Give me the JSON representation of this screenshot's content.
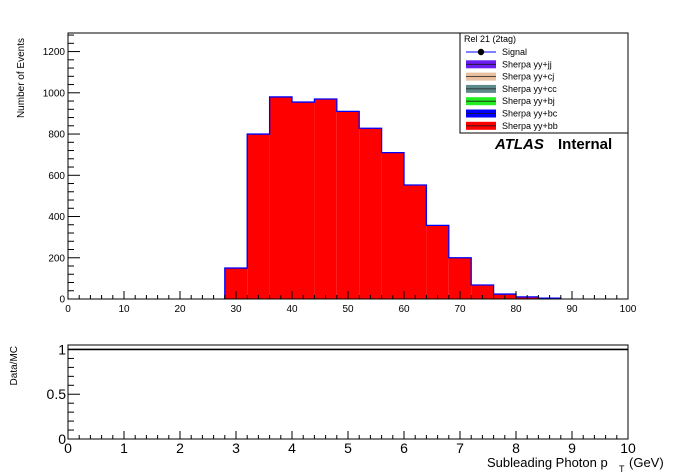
{
  "chart_data": [
    {
      "type": "bar",
      "histogram": true,
      "ylabel": "Number of Events",
      "xlim": [
        0,
        100
      ],
      "ylim": [
        0,
        1290
      ],
      "x_ticks": [
        0,
        10,
        20,
        30,
        40,
        50,
        60,
        70,
        80,
        90,
        100
      ],
      "y_ticks": [
        0,
        200,
        400,
        600,
        800,
        1000,
        1200
      ],
      "bin_edges": [
        28,
        32,
        36,
        40,
        44,
        48,
        52,
        56,
        60,
        64,
        68,
        72,
        76,
        80,
        84,
        88
      ],
      "series": [
        {
          "name": "Sherpa yy+bb",
          "color": "#ff0000",
          "values": [
            150,
            800,
            980,
            955,
            970,
            910,
            828,
            710,
            553,
            357,
            200,
            68,
            24,
            10,
            4
          ]
        }
      ],
      "outline_color": "#0000ff",
      "legend": {
        "title": "Rel 21 (2tag)",
        "position": "top-right",
        "entries": [
          {
            "label": "Signal",
            "style": "marker",
            "color": "#000000",
            "line": "#0000ff"
          },
          {
            "label": "Sherpa yy+jj",
            "style": "fill",
            "color": "#6a1ef0"
          },
          {
            "label": "Sherpa yy+cj",
            "style": "fill",
            "color": "#e8c0a0"
          },
          {
            "label": "Sherpa yy+cc",
            "style": "fill",
            "color": "#5f8a8c"
          },
          {
            "label": "Sherpa yy+bj",
            "style": "fill",
            "color": "#22ee22"
          },
          {
            "label": "Sherpa yy+bc",
            "style": "fill",
            "color": "#0000ff"
          },
          {
            "label": "Sherpa yy+bb",
            "style": "fill",
            "color": "#ff0000"
          }
        ]
      },
      "annotation": {
        "atlas": "ATLAS",
        "internal": "Internal"
      }
    },
    {
      "type": "line",
      "ylabel": "Data/MC",
      "xlabel_main": "Subleading Photon p",
      "xlabel_sub": "T",
      "xlabel_unit": "(GeV)",
      "xlim": [
        0,
        10
      ],
      "ylim": [
        0,
        1.05
      ],
      "x_ticks": [
        0,
        1,
        2,
        3,
        4,
        5,
        6,
        7,
        8,
        9,
        10
      ],
      "y_ticks": [
        0,
        0.5,
        1
      ],
      "y_tick_labels": [
        "0",
        "0.5",
        "1"
      ],
      "reference_line": 1
    }
  ]
}
